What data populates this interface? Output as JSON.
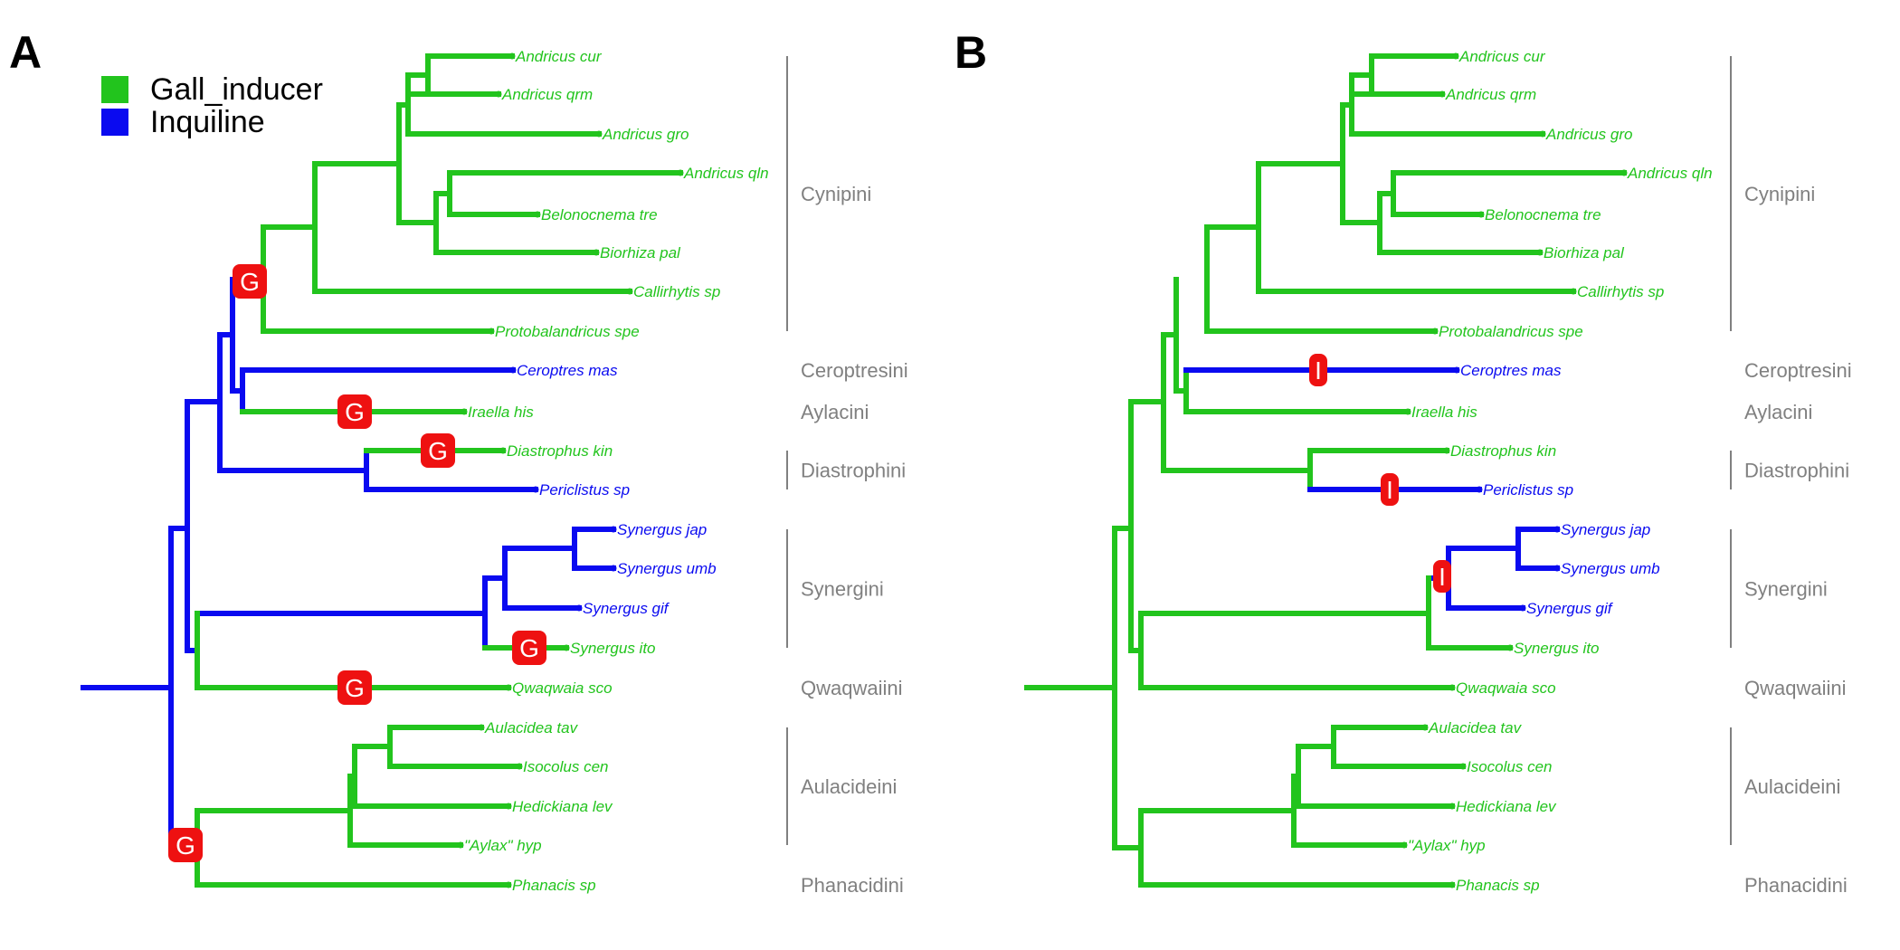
{
  "panels": [
    {
      "letter": "A"
    },
    {
      "letter": "B"
    }
  ],
  "legend": {
    "items": [
      {
        "label": "Gall_inducer",
        "color": "#22c41d"
      },
      {
        "label": "Inquiline",
        "color": "#0a0af0"
      }
    ]
  },
  "colors": {
    "gall": "#22c41d",
    "inquiline": "#0a0af0",
    "marker": "#ee1111",
    "clade_text": "#808080"
  },
  "taxa": [
    "Andricus cur",
    "Andricus qrm",
    "Andricus gro",
    "Andricus qln",
    "Belonocnema tre",
    "Biorhiza pal",
    "Callirhytis sp",
    "Protobalandricus spe",
    "Ceroptres mas",
    "Iraella his",
    "Diastrophus kin",
    "Periclistus sp",
    "Synergus jap",
    "Synergus umb",
    "Synergus gif",
    "Synergus ito",
    "Qwaqwaia sco",
    "Aulacidea tav",
    "Isocolus cen",
    "Hedickiana lev",
    "\"Aylax\" hyp",
    "Phanacis sp"
  ],
  "tribes": [
    "Cynipini",
    "Ceroptresini",
    "Aylacini",
    "Diastrophini",
    "Synergini",
    "Qwaqwaiini",
    "Aulacideini",
    "Phanacidini"
  ],
  "marker_labels": {
    "gall": "G",
    "inquiline": "I"
  },
  "tree_states": {
    "panel_a": {
      "gall_inducer": [
        "Andricus cur",
        "Andricus qrm",
        "Andricus gro",
        "Andricus qln",
        "Belonocnema tre",
        "Biorhiza pal",
        "Callirhytis sp",
        "Protobalandricus spe",
        "Iraella his",
        "Diastrophus kin",
        "Synergus ito",
        "Qwaqwaia sco",
        "Aulacidea tav",
        "Isocolus cen",
        "Hedickiana lev",
        "\"Aylax\" hyp",
        "Phanacis sp"
      ],
      "inquiline": [
        "Ceroptres mas",
        "Periclistus sp",
        "Synergus jap",
        "Synergus umb",
        "Synergus gif"
      ],
      "marker_count": 6
    },
    "panel_b": {
      "gall_inducer": [
        "Andricus cur",
        "Andricus qrm",
        "Andricus gro",
        "Andricus qln",
        "Belonocnema tre",
        "Biorhiza pal",
        "Callirhytis sp",
        "Protobalandricus spe",
        "Iraella his",
        "Diastrophus kin",
        "Synergus ito",
        "Qwaqwaia sco",
        "Aulacidea tav",
        "Isocolus cen",
        "Hedickiana lev",
        "\"Aylax\" hyp",
        "Phanacis sp"
      ],
      "inquiline": [
        "Ceroptres mas",
        "Periclistus sp",
        "Synergus jap",
        "Synergus umb",
        "Synergus gif"
      ],
      "marker_count": 3
    }
  }
}
